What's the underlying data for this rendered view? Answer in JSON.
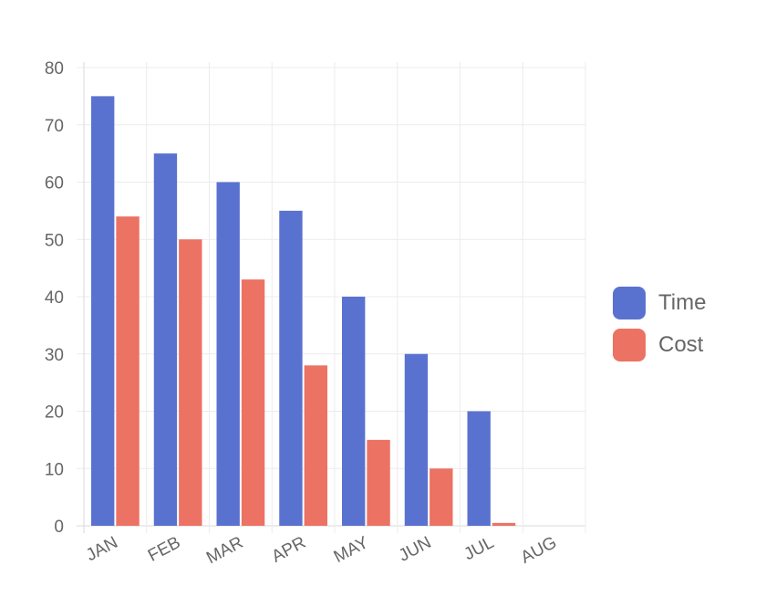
{
  "chart_data": {
    "type": "bar",
    "categories": [
      "JAN",
      "FEB",
      "MAR",
      "APR",
      "MAY",
      "JUN",
      "JUL",
      "AUG"
    ],
    "series": [
      {
        "name": "Time",
        "color": "#5a72cf",
        "values": [
          75,
          65,
          60,
          55,
          40,
          30,
          20,
          0
        ]
      },
      {
        "name": "Cost",
        "color": "#ec7263",
        "values": [
          54,
          50,
          43,
          28,
          15,
          10,
          0.5,
          0
        ]
      }
    ],
    "ylim": [
      0,
      80
    ],
    "yticks": [
      0,
      10,
      20,
      30,
      40,
      50,
      60,
      70,
      80
    ],
    "grid": true,
    "legend_position": "right",
    "title": "",
    "xlabel": "",
    "ylabel": ""
  }
}
